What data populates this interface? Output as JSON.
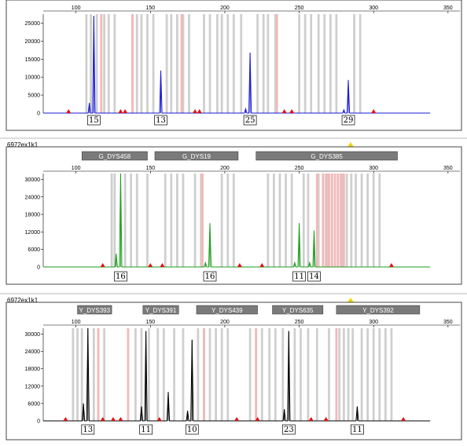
{
  "chart_data": [
    {
      "type": "line",
      "panel_title": "",
      "series_color": "#1a1ad6",
      "x_ticks": [
        "100",
        "150",
        "200",
        "250",
        "300",
        "350"
      ],
      "y_ticks": [
        "5000",
        "10000",
        "15000",
        "20000",
        "25000"
      ],
      "xlim": [
        78,
        358
      ],
      "ylim": [
        0,
        27500
      ],
      "markers": [],
      "peaks": [
        {
          "x": 112,
          "y": 27000
        },
        {
          "x": 109,
          "y": 2800
        },
        {
          "x": 157,
          "y": 11800
        },
        {
          "x": 217,
          "y": 16800
        },
        {
          "x": 214,
          "y": 1200
        },
        {
          "x": 283,
          "y": 9200
        },
        {
          "x": 280,
          "y": 900
        }
      ],
      "alleles": [
        {
          "x": 112,
          "label": "15"
        },
        {
          "x": 157,
          "label": "13"
        },
        {
          "x": 217,
          "label": "25"
        },
        {
          "x": 283,
          "label": "29"
        }
      ],
      "triangles": [
        95,
        130,
        133,
        180,
        183,
        240,
        245,
        300
      ],
      "gray_bins": [
        107,
        110,
        114,
        119,
        122,
        126,
        138,
        141,
        144,
        148,
        152,
        161,
        164,
        168,
        172,
        176,
        186,
        190,
        195,
        198,
        202,
        206,
        211,
        222,
        226,
        229,
        234,
        250,
        254,
        258,
        263,
        267,
        271,
        275,
        287,
        291
      ],
      "pink_bins": [
        117,
        138,
        171,
        235
      ]
    },
    {
      "type": "line",
      "panel_title": "6972ex1k1",
      "series_color": "#1f9e1f",
      "x_ticks": [
        "100",
        "150",
        "200",
        "250",
        "300",
        "350"
      ],
      "y_ticks": [
        "6000",
        "12000",
        "18000",
        "24000",
        "30000"
      ],
      "xlim": [
        78,
        358
      ],
      "ylim": [
        0,
        32000
      ],
      "markers": [
        {
          "label": "G_DYS458",
          "start": 104,
          "end": 148
        },
        {
          "label": "G_DYS19",
          "start": 153,
          "end": 209
        },
        {
          "label": "G_DYS385",
          "start": 221,
          "end": 316
        }
      ],
      "peaks": [
        {
          "x": 130,
          "y": 32000
        },
        {
          "x": 127,
          "y": 4500
        },
        {
          "x": 190,
          "y": 15000
        },
        {
          "x": 187,
          "y": 1500
        },
        {
          "x": 250,
          "y": 15000
        },
        {
          "x": 247,
          "y": 1500
        },
        {
          "x": 260,
          "y": 12500
        },
        {
          "x": 257,
          "y": 1500
        }
      ],
      "alleles": [
        {
          "x": 130,
          "label": "16"
        },
        {
          "x": 190,
          "label": "16"
        },
        {
          "x": 250,
          "label": "11"
        },
        {
          "x": 260,
          "label": "14"
        }
      ],
      "triangles": [
        118,
        150,
        158,
        210,
        225,
        312
      ],
      "gray_bins": [
        124,
        126,
        133,
        137,
        141,
        148,
        160,
        164,
        168,
        172,
        180,
        184,
        198,
        202,
        206,
        229,
        233,
        237,
        241,
        245,
        253,
        256,
        263,
        266,
        269,
        272,
        276,
        279,
        282,
        285,
        288,
        292,
        296,
        300,
        304
      ],
      "pink_bins": [
        185,
        262,
        266,
        268,
        270,
        272,
        274,
        276,
        278,
        280
      ]
    },
    {
      "type": "line",
      "panel_title": "6972ex1k1",
      "series_color": "#000000",
      "x_ticks": [
        "100",
        "150",
        "200",
        "250",
        "300",
        "350"
      ],
      "y_ticks": [
        "6000",
        "12000",
        "18000",
        "24000",
        "30000"
      ],
      "xlim": [
        78,
        358
      ],
      "ylim": [
        0,
        32000
      ],
      "markers": [
        {
          "label": "Y_DYS393",
          "start": 101,
          "end": 124
        },
        {
          "label": "Y_DYS391",
          "start": 145,
          "end": 169
        },
        {
          "label": "Y_DYS439",
          "start": 181,
          "end": 222
        },
        {
          "label": "Y_DYS635",
          "start": 232,
          "end": 266
        },
        {
          "label": "Y_DYS392",
          "start": 275,
          "end": 331
        }
      ],
      "peaks": [
        {
          "x": 108,
          "y": 32000
        },
        {
          "x": 105,
          "y": 6000
        },
        {
          "x": 147,
          "y": 31000
        },
        {
          "x": 144,
          "y": 5000
        },
        {
          "x": 162,
          "y": 10000
        },
        {
          "x": 178,
          "y": 28000
        },
        {
          "x": 175,
          "y": 3500
        },
        {
          "x": 243,
          "y": 31000
        },
        {
          "x": 240,
          "y": 4000
        },
        {
          "x": 289,
          "y": 5000
        }
      ],
      "alleles": [
        {
          "x": 108,
          "label": "13"
        },
        {
          "x": 147,
          "label": "11"
        },
        {
          "x": 178,
          "label": "10"
        },
        {
          "x": 243,
          "label": "23"
        },
        {
          "x": 289,
          "label": "11"
        }
      ],
      "triangles": [
        93,
        118,
        125,
        130,
        156,
        208,
        222,
        258,
        268,
        320
      ],
      "gray_bins": [
        98,
        101,
        104,
        112,
        115,
        119,
        140,
        144,
        149,
        155,
        159,
        166,
        172,
        182,
        186,
        190,
        194,
        198,
        202,
        217,
        221,
        225,
        230,
        234,
        239,
        247,
        251,
        256,
        262,
        270,
        277,
        280,
        283,
        286,
        292,
        296,
        300,
        304,
        308,
        312
      ],
      "pink_bins": [
        115,
        135,
        186,
        221,
        275
      ]
    }
  ]
}
